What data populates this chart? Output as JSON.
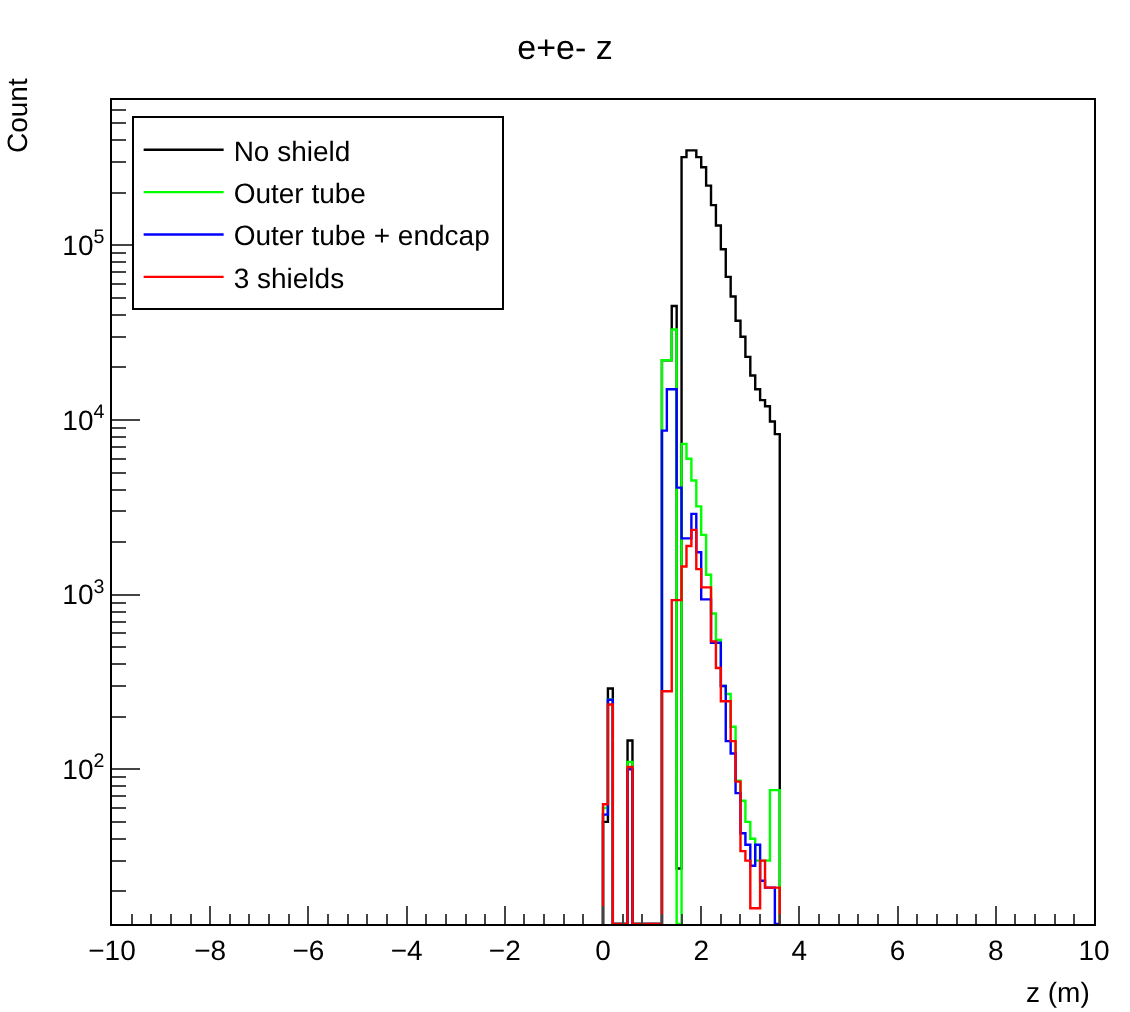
{
  "chart_data": {
    "type": "histogram",
    "title": "e+e- z",
    "xlabel": "z (m)",
    "ylabel": "Count",
    "bins": [
      0.0,
      0.1,
      0.2,
      0.3,
      0.4,
      0.5,
      0.6,
      0.7,
      0.8,
      0.9,
      1.0,
      1.1,
      1.2,
      1.3,
      1.4,
      1.5,
      1.6,
      1.7,
      1.8,
      1.9,
      2.0,
      2.1,
      2.2,
      2.3,
      2.4,
      2.5,
      2.6,
      2.7,
      2.8,
      2.9,
      3.0,
      3.1,
      3.2,
      3.3,
      3.4,
      3.5,
      3.6
    ],
    "series": [
      {
        "name": "No shield",
        "color": "#000000",
        "values": [
          50,
          290,
          null,
          null,
          null,
          146,
          null,
          null,
          null,
          null,
          null,
          null,
          22000,
          22000,
          45000,
          27,
          320000,
          350000,
          350000,
          320000,
          280000,
          220000,
          170000,
          130000,
          95000,
          66000,
          51000,
          37000,
          30000,
          23000,
          18000,
          15000,
          13000,
          12000,
          9800,
          8300
        ]
      },
      {
        "name": "Outer tube",
        "color": "#00ff00",
        "values": [
          60,
          250,
          null,
          null,
          null,
          110,
          null,
          null,
          null,
          null,
          null,
          null,
          22000,
          22000,
          33000,
          null,
          7300,
          6000,
          4500,
          3200,
          2200,
          1300,
          780,
          550,
          300,
          270,
          175,
          86,
          66,
          50,
          40,
          30,
          30,
          30,
          76,
          76
        ]
      },
      {
        "name": "Outer tube + endcap",
        "color": "#0000ff",
        "values": [
          55,
          250,
          null,
          null,
          null,
          100,
          null,
          null,
          null,
          null,
          null,
          null,
          8700,
          15000,
          15000,
          4100,
          2100,
          2100,
          2900,
          1750,
          940,
          940,
          530,
          530,
          300,
          145,
          123,
          73,
          43,
          37,
          28,
          37,
          23,
          21,
          21,
          null
        ]
      },
      {
        "name": "3 shields",
        "color": "#ff0000",
        "values": [
          63,
          235,
          null,
          null,
          null,
          103,
          null,
          null,
          null,
          null,
          null,
          null,
          280,
          280,
          930,
          930,
          1450,
          1900,
          2350,
          1400,
          1100,
          1100,
          540,
          380,
          245,
          245,
          145,
          85,
          34,
          30,
          16,
          16,
          30,
          21,
          21,
          21
        ]
      }
    ],
    "log": "y",
    "legend": "top left",
    "xlim": [
      -10,
      10
    ],
    "xticks": [
      -10,
      -8,
      -6,
      -4,
      -2,
      0,
      2,
      4,
      6,
      8,
      10
    ],
    "ylim": [
      13,
      680000
    ],
    "yticks": [
      {
        "value": 100,
        "label": "10$^{2}$"
      },
      {
        "value": 1000,
        "label": "10$^{3}$"
      },
      {
        "value": 10000,
        "label": "10$^{4}$"
      },
      {
        "value": 100000,
        "label": "10$^{5}$"
      }
    ]
  }
}
